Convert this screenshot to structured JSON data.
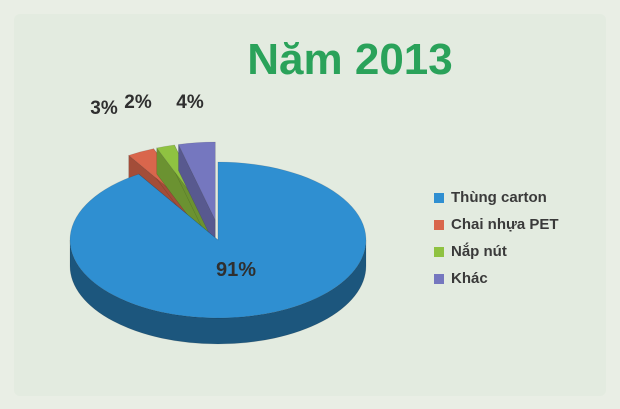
{
  "chart_data": {
    "type": "pie",
    "title": "Năm 2013",
    "slices": [
      {
        "name": "Thùng carton",
        "value": 91,
        "label": "91%",
        "color": "#2f8fd1"
      },
      {
        "name": "Chai nhựa PET",
        "value": 3,
        "label": "3%",
        "color": "#d9664c"
      },
      {
        "name": "Nắp nút",
        "value": 2,
        "label": "2%",
        "color": "#8fc241"
      },
      {
        "name": "Khác",
        "value": 4,
        "label": "4%",
        "color": "#7577bf"
      }
    ],
    "legend_position": "right",
    "title_color": "#2aa25a"
  }
}
